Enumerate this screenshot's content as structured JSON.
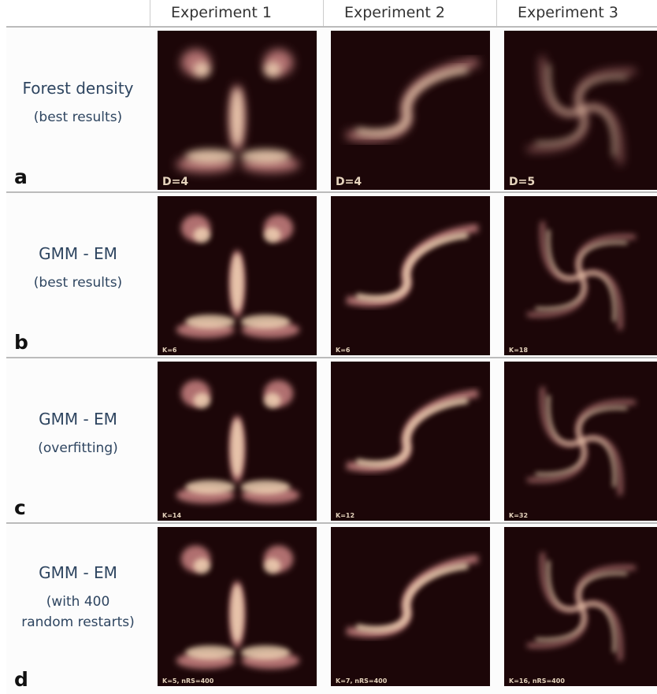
{
  "columns": [
    "Experiment 1",
    "Experiment 2",
    "Experiment 3"
  ],
  "rows": [
    {
      "letter": "a",
      "title": "Forest density",
      "subtitle": "(best results)",
      "panels": [
        "D=4",
        "D=4",
        "D=5"
      ]
    },
    {
      "letter": "b",
      "title": "GMM - EM",
      "subtitle": "(best results)",
      "panels": [
        "K=6",
        "K=6",
        "K=18"
      ]
    },
    {
      "letter": "c",
      "title": "GMM - EM",
      "subtitle": "(overfitting)",
      "panels": [
        "K=14",
        "K=12",
        "K=32"
      ]
    },
    {
      "letter": "d",
      "title": "GMM - EM",
      "subtitle": "(with 400 random restarts)",
      "panels": [
        "K=5, nRS=400",
        "K=7, nRS=400",
        "K=16, nRS=400"
      ]
    }
  ]
}
